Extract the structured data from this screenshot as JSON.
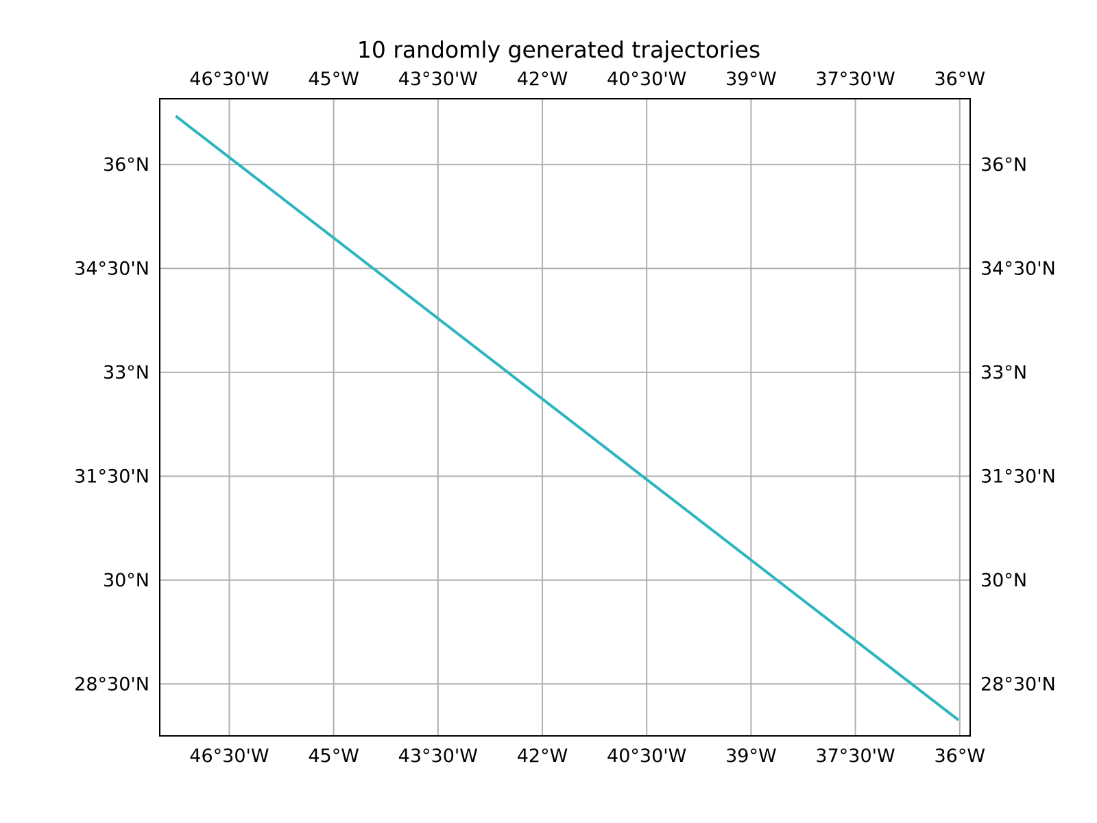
{
  "chart_data": {
    "type": "line",
    "title": "10 randomly generated trajectories",
    "xlabel": "",
    "ylabel": "",
    "xlim": [
      -47.5,
      -35.85
    ],
    "ylim": [
      27.75,
      36.95
    ],
    "grid": true,
    "x_ticks": [
      {
        "value": -46.5,
        "label": "46°30'W"
      },
      {
        "value": -45.0,
        "label": "45°W"
      },
      {
        "value": -43.5,
        "label": "43°30'W"
      },
      {
        "value": -42.0,
        "label": "42°W"
      },
      {
        "value": -40.5,
        "label": "40°30'W"
      },
      {
        "value": -39.0,
        "label": "39°W"
      },
      {
        "value": -37.5,
        "label": "37°30'W"
      },
      {
        "value": -36.0,
        "label": "36°W"
      }
    ],
    "y_ticks": [
      {
        "value": 36.0,
        "label": "36°N"
      },
      {
        "value": 34.5,
        "label": "34°30'N"
      },
      {
        "value": 33.0,
        "label": "33°N"
      },
      {
        "value": 31.5,
        "label": "31°30'N"
      },
      {
        "value": 30.0,
        "label": "30°N"
      },
      {
        "value": 28.5,
        "label": "28°30'N"
      }
    ],
    "series": [
      {
        "color": "#2bb5c0",
        "x": [
          -47.27,
          -36.02
        ],
        "y": [
          36.7,
          27.98
        ]
      }
    ]
  }
}
